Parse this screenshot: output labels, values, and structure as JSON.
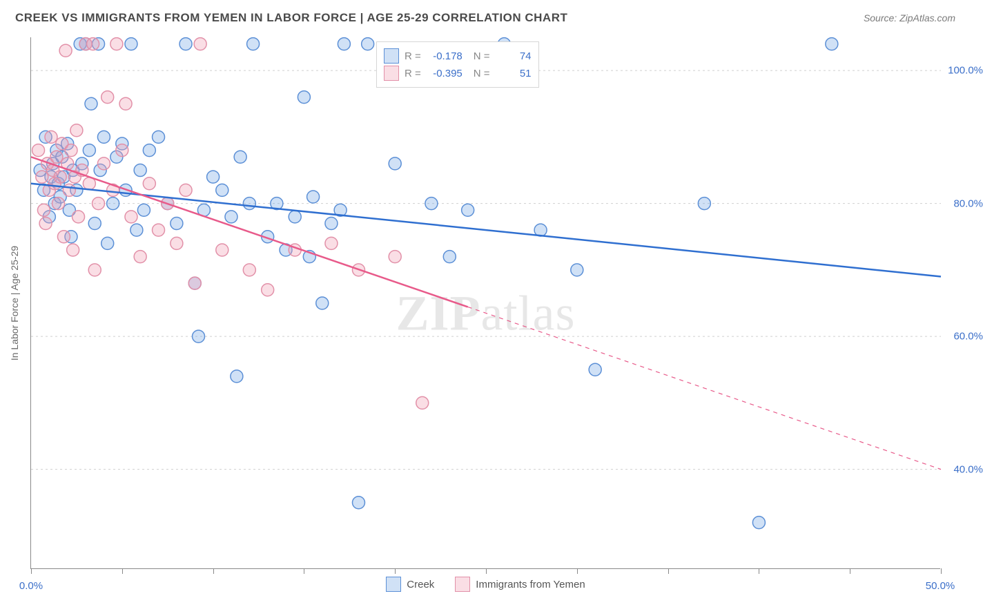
{
  "title": "CREEK VS IMMIGRANTS FROM YEMEN IN LABOR FORCE | AGE 25-29 CORRELATION CHART",
  "source": "Source: ZipAtlas.com",
  "watermark_bold": "ZIP",
  "watermark_light": "atlas",
  "chart": {
    "type": "scatter",
    "background_color": "#ffffff",
    "grid_color": "#cfcfcf",
    "axis_color": "#888888",
    "label_color": "#3b6fc9",
    "text_color": "#6a6a6a",
    "xlim": [
      0,
      50
    ],
    "ylim": [
      25,
      105
    ],
    "x_ticks_at": [
      0,
      5,
      10,
      15,
      20,
      25,
      30,
      35,
      40,
      45,
      50
    ],
    "x_labels": {
      "0": "0.0%",
      "50": "50.0%"
    },
    "y_grid": [
      40,
      60,
      80,
      100
    ],
    "y_labels": {
      "40": "40.0%",
      "60": "60.0%",
      "80": "80.0%",
      "100": "100.0%"
    },
    "ylabel": "In Labor Force | Age 25-29",
    "marker_radius": 9,
    "marker_stroke_width": 1.5,
    "line_width": 2.5,
    "series": [
      {
        "name": "Creek",
        "fill": "rgba(120,170,230,0.35)",
        "stroke": "#5b8fd6",
        "line_color": "#2f6fd0",
        "R": "-0.178",
        "N": "74",
        "trend": {
          "x1": 0,
          "y1": 83,
          "x2": 50,
          "y2": 69,
          "dash_after_x": null
        },
        "points": [
          [
            0.5,
            85
          ],
          [
            0.7,
            82
          ],
          [
            0.8,
            90
          ],
          [
            1.0,
            78
          ],
          [
            1.1,
            84
          ],
          [
            1.2,
            86
          ],
          [
            1.3,
            80
          ],
          [
            1.4,
            88
          ],
          [
            1.5,
            83
          ],
          [
            1.6,
            81
          ],
          [
            1.7,
            87
          ],
          [
            1.8,
            84
          ],
          [
            2.0,
            89
          ],
          [
            2.1,
            79
          ],
          [
            2.2,
            75
          ],
          [
            2.3,
            85
          ],
          [
            2.5,
            82
          ],
          [
            2.7,
            104
          ],
          [
            2.8,
            86
          ],
          [
            3.0,
            104
          ],
          [
            3.2,
            88
          ],
          [
            3.3,
            95
          ],
          [
            3.5,
            77
          ],
          [
            3.7,
            104
          ],
          [
            3.8,
            85
          ],
          [
            4.0,
            90
          ],
          [
            4.2,
            74
          ],
          [
            4.5,
            80
          ],
          [
            4.7,
            87
          ],
          [
            5.0,
            89
          ],
          [
            5.2,
            82
          ],
          [
            5.5,
            104
          ],
          [
            5.8,
            76
          ],
          [
            6.0,
            85
          ],
          [
            6.2,
            79
          ],
          [
            6.5,
            88
          ],
          [
            7.0,
            90
          ],
          [
            7.5,
            80
          ],
          [
            8.0,
            77
          ],
          [
            8.5,
            104
          ],
          [
            9.0,
            68
          ],
          [
            9.2,
            60
          ],
          [
            9.5,
            79
          ],
          [
            10.0,
            84
          ],
          [
            10.5,
            82
          ],
          [
            11.0,
            78
          ],
          [
            11.3,
            54
          ],
          [
            11.5,
            87
          ],
          [
            12.0,
            80
          ],
          [
            12.2,
            104
          ],
          [
            13.0,
            75
          ],
          [
            13.5,
            80
          ],
          [
            14.0,
            73
          ],
          [
            14.5,
            78
          ],
          [
            15.0,
            96
          ],
          [
            15.3,
            72
          ],
          [
            15.5,
            81
          ],
          [
            16.0,
            65
          ],
          [
            16.5,
            77
          ],
          [
            17.0,
            79
          ],
          [
            17.2,
            104
          ],
          [
            18.0,
            35
          ],
          [
            18.5,
            104
          ],
          [
            20.0,
            86
          ],
          [
            22.0,
            80
          ],
          [
            23.0,
            72
          ],
          [
            24.0,
            79
          ],
          [
            26.0,
            104
          ],
          [
            28.0,
            76
          ],
          [
            30.0,
            70
          ],
          [
            31.0,
            55
          ],
          [
            37.0,
            80
          ],
          [
            40.0,
            32
          ],
          [
            44.0,
            104
          ]
        ]
      },
      {
        "name": "Immigrants from Yemen",
        "fill": "rgba(240,160,180,0.35)",
        "stroke": "#e290a8",
        "line_color": "#e85a8a",
        "R": "-0.395",
        "N": "51",
        "trend": {
          "x1": 0,
          "y1": 87,
          "x2": 50,
          "y2": 40,
          "dash_after_x": 24
        },
        "points": [
          [
            0.4,
            88
          ],
          [
            0.6,
            84
          ],
          [
            0.7,
            79
          ],
          [
            0.8,
            77
          ],
          [
            0.9,
            86
          ],
          [
            1.0,
            82
          ],
          [
            1.1,
            90
          ],
          [
            1.2,
            85
          ],
          [
            1.3,
            83
          ],
          [
            1.4,
            87
          ],
          [
            1.5,
            80
          ],
          [
            1.6,
            84
          ],
          [
            1.7,
            89
          ],
          [
            1.8,
            75
          ],
          [
            1.9,
            103
          ],
          [
            2.0,
            86
          ],
          [
            2.1,
            82
          ],
          [
            2.2,
            88
          ],
          [
            2.3,
            73
          ],
          [
            2.4,
            84
          ],
          [
            2.5,
            91
          ],
          [
            2.6,
            78
          ],
          [
            2.8,
            85
          ],
          [
            3.0,
            104
          ],
          [
            3.2,
            83
          ],
          [
            3.4,
            104
          ],
          [
            3.5,
            70
          ],
          [
            3.7,
            80
          ],
          [
            4.0,
            86
          ],
          [
            4.2,
            96
          ],
          [
            4.5,
            82
          ],
          [
            4.7,
            104
          ],
          [
            5.0,
            88
          ],
          [
            5.2,
            95
          ],
          [
            5.5,
            78
          ],
          [
            6.0,
            72
          ],
          [
            6.5,
            83
          ],
          [
            7.0,
            76
          ],
          [
            7.5,
            80
          ],
          [
            8.0,
            74
          ],
          [
            8.5,
            82
          ],
          [
            9.0,
            68
          ],
          [
            9.3,
            104
          ],
          [
            10.5,
            73
          ],
          [
            12.0,
            70
          ],
          [
            13.0,
            67
          ],
          [
            14.5,
            73
          ],
          [
            16.5,
            74
          ],
          [
            18.0,
            70
          ],
          [
            20.0,
            72
          ],
          [
            21.5,
            50
          ]
        ]
      }
    ]
  },
  "bottom_legend": {
    "item1": "Creek",
    "item2": "Immigrants from Yemen"
  },
  "stats_legend": {
    "r_label": "R =",
    "n_label": "N ="
  }
}
